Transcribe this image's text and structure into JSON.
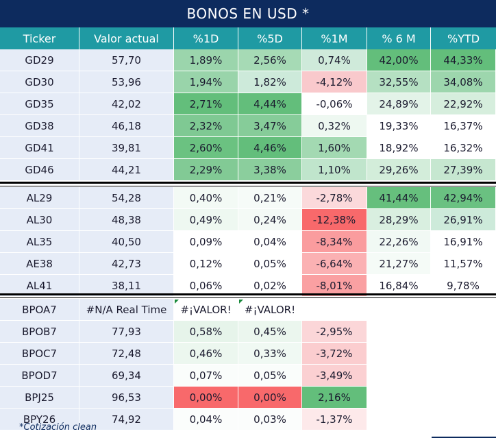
{
  "title": "BONOS EN USD *",
  "headers": [
    "Ticker",
    "Valor actual",
    "%1D",
    "%5D",
    "%1M",
    "% 6 M",
    "%YTD"
  ],
  "groups": [
    {
      "rows": [
        {
          "ticker": "GD29",
          "valor": "57,70",
          "cells": [
            {
              "text": "1,89%",
              "color": "#9bd5ac"
            },
            {
              "text": "2,56%",
              "color": "#a6dab5"
            },
            {
              "text": "0,74%",
              "color": "#cfeada"
            },
            {
              "text": "42,00%",
              "color": "#63be7b"
            },
            {
              "text": "44,33%",
              "color": "#63be7b"
            }
          ]
        },
        {
          "ticker": "GD30",
          "valor": "53,96",
          "cells": [
            {
              "text": "1,94%",
              "color": "#99d4aa"
            },
            {
              "text": "1,82%",
              "color": "#cdeada"
            },
            {
              "text": "-4,12%",
              "color": "#f9c9cc"
            },
            {
              "text": "32,55%",
              "color": "#b5e0c2"
            },
            {
              "text": "34,08%",
              "color": "#9dd6ad"
            }
          ]
        },
        {
          "ticker": "GD35",
          "valor": "42,02",
          "cells": [
            {
              "text": "2,71%",
              "color": "#63be7b"
            },
            {
              "text": "4,44%",
              "color": "#63be7b"
            },
            {
              "text": "-0,06%",
              "color": "#ffffff"
            },
            {
              "text": "24,89%",
              "color": "#e3f3e8"
            },
            {
              "text": "22,92%",
              "color": "#d6eedd"
            }
          ]
        },
        {
          "ticker": "GD38",
          "valor": "46,18",
          "cells": [
            {
              "text": "2,32%",
              "color": "#7fc993"
            },
            {
              "text": "3,47%",
              "color": "#86cc99"
            },
            {
              "text": "0,32%",
              "color": "#eef8f1"
            },
            {
              "text": "19,33%",
              "color": "#ffffff"
            },
            {
              "text": "16,37%",
              "color": "#ffffff"
            }
          ]
        },
        {
          "ticker": "GD41",
          "valor": "39,81",
          "cells": [
            {
              "text": "2,60%",
              "color": "#6bc281"
            },
            {
              "text": "4,46%",
              "color": "#63be7b"
            },
            {
              "text": "1,60%",
              "color": "#a3d9b2"
            },
            {
              "text": "18,92%",
              "color": "#ffffff"
            },
            {
              "text": "16,32%",
              "color": "#ffffff"
            }
          ]
        },
        {
          "ticker": "GD46",
          "valor": "44,21",
          "cells": [
            {
              "text": "2,29%",
              "color": "#82ca95"
            },
            {
              "text": "3,38%",
              "color": "#8bce9d"
            },
            {
              "text": "1,10%",
              "color": "#c0e5cc"
            },
            {
              "text": "29,26%",
              "color": "#d3edda"
            },
            {
              "text": "27,39%",
              "color": "#c6e7d0"
            }
          ]
        }
      ]
    },
    {
      "rows": [
        {
          "ticker": "AL29",
          "valor": "54,28",
          "cells": [
            {
              "text": "0,40%",
              "color": "#f3faf5"
            },
            {
              "text": "0,21%",
              "color": "#f6fbf8"
            },
            {
              "text": "-2,78%",
              "color": "#fbd9db"
            },
            {
              "text": "41,44%",
              "color": "#66bf7d"
            },
            {
              "text": "42,94%",
              "color": "#6ac181"
            }
          ]
        },
        {
          "ticker": "AL30",
          "valor": "48,38",
          "cells": [
            {
              "text": "0,49%",
              "color": "#eef8f1"
            },
            {
              "text": "0,24%",
              "color": "#f4faf6"
            },
            {
              "text": "-12,38%",
              "color": "#f8696b"
            },
            {
              "text": "28,29%",
              "color": "#d9efe0"
            },
            {
              "text": "26,91%",
              "color": "#cdeada"
            }
          ]
        },
        {
          "ticker": "AL35",
          "valor": "40,50",
          "cells": [
            {
              "text": "0,09%",
              "color": "#ffffff"
            },
            {
              "text": "0,04%",
              "color": "#ffffff"
            },
            {
              "text": "-8,34%",
              "color": "#fa9c9e"
            },
            {
              "text": "22,26%",
              "color": "#f1f9f4"
            },
            {
              "text": "16,91%",
              "color": "#ffffff"
            }
          ]
        },
        {
          "ticker": "AE38",
          "valor": "42,73",
          "cells": [
            {
              "text": "0,12%",
              "color": "#ffffff"
            },
            {
              "text": "0,05%",
              "color": "#ffffff"
            },
            {
              "text": "-6,64%",
              "color": "#fbb1b3"
            },
            {
              "text": "21,27%",
              "color": "#f5fbf7"
            },
            {
              "text": "11,57%",
              "color": "#ffffff"
            }
          ]
        },
        {
          "ticker": "AL41",
          "valor": "38,11",
          "cells": [
            {
              "text": "0,06%",
              "color": "#ffffff"
            },
            {
              "text": "0,02%",
              "color": "#ffffff"
            },
            {
              "text": "-8,01%",
              "color": "#faa0a2"
            },
            {
              "text": "16,84%",
              "color": "#ffffff"
            },
            {
              "text": "9,78%",
              "color": "#ffffff"
            }
          ]
        }
      ]
    },
    {
      "rows": [
        {
          "ticker": "BPOA7",
          "valor": "#N/A Real Time",
          "cells": [
            {
              "text": "#¡VALOR!",
              "color": "#ffffff",
              "err": true
            },
            {
              "text": "#¡VALOR!",
              "color": "#ffffff",
              "err": true
            },
            {
              "text": "",
              "color": "#ffffff"
            },
            {
              "text": "",
              "color": "#ffffff"
            },
            {
              "text": "",
              "color": "#ffffff"
            }
          ]
        },
        {
          "ticker": "BPOB7",
          "valor": "77,93",
          "cells": [
            {
              "text": "0,58%",
              "color": "#e6f4ea"
            },
            {
              "text": "0,45%",
              "color": "#ebf6ee"
            },
            {
              "text": "-2,95%",
              "color": "#fbd6d8"
            },
            {
              "text": "",
              "color": "#ffffff"
            },
            {
              "text": "",
              "color": "#ffffff"
            }
          ]
        },
        {
          "ticker": "BPOC7",
          "valor": "72,48",
          "cells": [
            {
              "text": "0,46%",
              "color": "#ecf7ef"
            },
            {
              "text": "0,33%",
              "color": "#f0f9f3"
            },
            {
              "text": "-3,72%",
              "color": "#fbcdcf"
            },
            {
              "text": "",
              "color": "#ffffff"
            },
            {
              "text": "",
              "color": "#ffffff"
            }
          ]
        },
        {
          "ticker": "BPOD7",
          "valor": "69,34",
          "cells": [
            {
              "text": "0,07%",
              "color": "#fafdfb"
            },
            {
              "text": "0,05%",
              "color": "#fafdfb"
            },
            {
              "text": "-3,49%",
              "color": "#fbd0d2"
            },
            {
              "text": "",
              "color": "#ffffff"
            },
            {
              "text": "",
              "color": "#ffffff"
            }
          ]
        },
        {
          "ticker": "BPJ25",
          "valor": "96,53",
          "cells": [
            {
              "text": "0,00%",
              "color": "#f8696b"
            },
            {
              "text": "0,00%",
              "color": "#f8696b"
            },
            {
              "text": "2,16%",
              "color": "#63be7b"
            },
            {
              "text": "",
              "color": "#ffffff"
            },
            {
              "text": "",
              "color": "#ffffff"
            }
          ]
        },
        {
          "ticker": "BPY26",
          "valor": "74,92",
          "cells": [
            {
              "text": "0,04%",
              "color": "#fbfdfc"
            },
            {
              "text": "0,03%",
              "color": "#fbfdfc"
            },
            {
              "text": "-1,37%",
              "color": "#fde9ea"
            },
            {
              "text": "",
              "color": "#ffffff"
            },
            {
              "text": "",
              "color": "#ffffff"
            }
          ]
        }
      ]
    }
  ],
  "footnote": "*Cotización clean"
}
